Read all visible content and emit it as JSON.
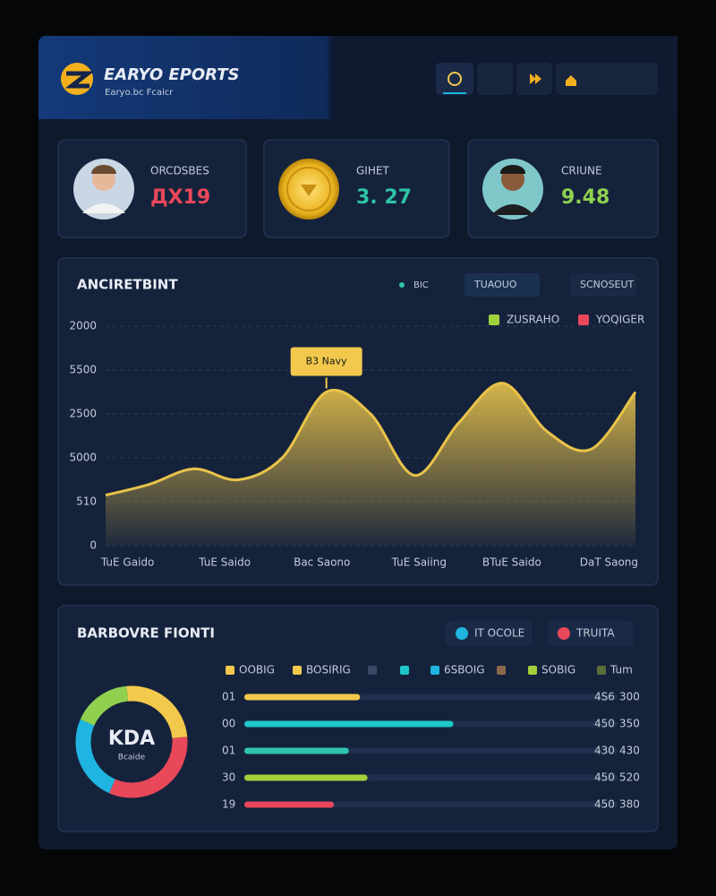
{
  "header": {
    "logo_title": "EARYO EPORTS",
    "logo_subtitle": "Earyo.bc Fcaicr"
  },
  "stats": [
    {
      "label": "ORCDSBES",
      "value": "ДX19"
    },
    {
      "label": "GIHET",
      "value": "3. 27"
    },
    {
      "label": "CRIUNE",
      "value": "9.48"
    }
  ],
  "trend": {
    "title": "ANCIRETBINT",
    "filters": [
      "BIC",
      "TUAOUO",
      "SCNOSEUT"
    ],
    "legend": [
      {
        "name": "ZUSRAHO",
        "color": "#9fd13b"
      },
      {
        "name": "YOQIGER",
        "color": "#e8485a"
      }
    ],
    "chart_data": {
      "type": "area",
      "x": [
        0,
        1,
        2,
        3,
        4,
        5,
        6,
        7,
        8,
        9,
        10,
        11,
        12
      ],
      "values": [
        1.15,
        1.4,
        1.75,
        1.5,
        2.0,
        3.5,
        3.0,
        1.6,
        2.8,
        3.7,
        2.6,
        2.2,
        3.5
      ],
      "color": "#e9c34a",
      "xlim": [
        0,
        12
      ],
      "ylim": [
        0,
        5
      ],
      "yticks": [
        0,
        {
          "value": 1,
          "label": "510"
        },
        {
          "value": 2,
          "label": "5000"
        },
        {
          "value": 3,
          "label": "2500"
        },
        {
          "value": 4,
          "label": "5500"
        },
        {
          "value": 5,
          "label": "2000"
        }
      ],
      "xticks": [
        {
          "value": 0.5,
          "label": "TuE Gaido"
        },
        {
          "value": 2.7,
          "label": "TuE Saido"
        },
        {
          "value": 4.9,
          "label": "Bac Saono"
        },
        {
          "value": 7.1,
          "label": "TuE Saiing"
        },
        {
          "value": 9.2,
          "label": "BTuE Saido"
        },
        {
          "value": 11.4,
          "label": "DaT Saong"
        }
      ],
      "grid": true,
      "annotation": {
        "x": 5,
        "text": "B3 Navy"
      }
    }
  },
  "performance": {
    "title": "BARBOVRE FIONTI",
    "toggles": [
      {
        "label": "IT OCOLE",
        "color": "#1fb5e0"
      },
      {
        "label": "TRUITA",
        "color": "#e8485a"
      }
    ],
    "key": [
      "OOBIG",
      "BOSIRIG",
      "6SBOIG",
      "SOBIG",
      "Tum"
    ],
    "donut": {
      "center_label": "KDA",
      "sub_label": "Bcaide",
      "chart_data": {
        "type": "donut",
        "values": [
          25,
          33,
          25,
          17
        ],
        "colors": [
          "#f2c94c",
          "#e8485a",
          "#1fb5e0",
          "#8fd14f"
        ]
      }
    },
    "bars": {
      "chart_data": {
        "type": "hbar",
        "categories": [
          "01",
          "00",
          "01",
          "30",
          "19"
        ],
        "values": [
          31,
          56,
          28,
          33,
          24
        ],
        "colors": [
          "#f2c94c",
          "#1fc8c8",
          "#2ec4b0",
          "#a3d13b",
          "#e8485a"
        ],
        "xlim": [
          0,
          100
        ]
      },
      "side_labels": [
        [
          "4S6",
          "300"
        ],
        [
          "450",
          "350"
        ],
        [
          "430",
          "430"
        ],
        [
          "450",
          "520"
        ],
        [
          "450",
          "380"
        ]
      ]
    }
  }
}
